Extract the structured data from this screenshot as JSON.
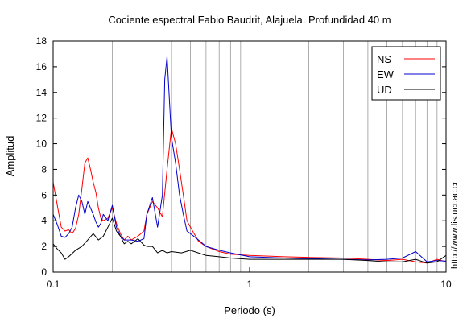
{
  "chart_data": {
    "type": "line",
    "title": "Cociente espectral Fabio Baudrit, Alajuela. Profundidad 40 m",
    "xlabel": "Periodo (s)",
    "ylabel": "Amplitud",
    "xscale": "log",
    "xlim": [
      0.1,
      10
    ],
    "ylim": [
      0,
      18
    ],
    "grid": "vertical log minor lines",
    "legend_placement": "top-right",
    "xticks": [
      {
        "value": 0.1,
        "label": "0.1"
      },
      {
        "value": 1,
        "label": "1"
      },
      {
        "value": 10,
        "label": "10"
      }
    ],
    "yticks": [
      {
        "value": 0,
        "label": "0"
      },
      {
        "value": 2,
        "label": "2"
      },
      {
        "value": 4,
        "label": "4"
      },
      {
        "value": 6,
        "label": "6"
      },
      {
        "value": 8,
        "label": "8"
      },
      {
        "value": 10,
        "label": "10"
      },
      {
        "value": 12,
        "label": "12"
      },
      {
        "value": 14,
        "label": "14"
      },
      {
        "value": 16,
        "label": "16"
      },
      {
        "value": 18,
        "label": "18"
      }
    ],
    "annotation": "http://www.lis.ucr.ac.cr",
    "series": [
      {
        "name": "NS",
        "color": "#ff0000",
        "x": [
          0.1,
          0.105,
          0.11,
          0.115,
          0.12,
          0.125,
          0.13,
          0.135,
          0.14,
          0.145,
          0.15,
          0.155,
          0.16,
          0.165,
          0.17,
          0.175,
          0.18,
          0.19,
          0.2,
          0.21,
          0.22,
          0.23,
          0.24,
          0.25,
          0.27,
          0.29,
          0.3,
          0.32,
          0.34,
          0.36,
          0.38,
          0.4,
          0.42,
          0.44,
          0.46,
          0.48,
          0.5,
          0.55,
          0.6,
          0.7,
          0.8,
          1.0,
          1.5,
          2.0,
          3.0,
          4.0,
          5.0,
          6.0,
          7.0,
          8.0,
          9.0,
          10.0
        ],
        "values": [
          7.0,
          5.2,
          3.5,
          3.2,
          3.3,
          3.0,
          3.4,
          4.5,
          6.5,
          8.5,
          8.9,
          8.0,
          7.0,
          6.2,
          5.0,
          4.2,
          4.0,
          4.2,
          5.0,
          3.8,
          3.0,
          2.5,
          2.8,
          2.5,
          2.8,
          3.2,
          4.5,
          5.5,
          5.0,
          4.3,
          8.0,
          11.2,
          10.0,
          8.0,
          6.0,
          4.0,
          3.5,
          2.4,
          2.0,
          1.6,
          1.4,
          1.3,
          1.2,
          1.15,
          1.1,
          1.0,
          0.9,
          1.0,
          0.8,
          0.7,
          1.0,
          0.8
        ]
      },
      {
        "name": "EW",
        "color": "#0000cc",
        "x": [
          0.1,
          0.105,
          0.11,
          0.115,
          0.12,
          0.125,
          0.13,
          0.135,
          0.14,
          0.145,
          0.15,
          0.155,
          0.16,
          0.165,
          0.17,
          0.175,
          0.18,
          0.19,
          0.2,
          0.21,
          0.22,
          0.23,
          0.24,
          0.25,
          0.27,
          0.29,
          0.3,
          0.32,
          0.34,
          0.36,
          0.37,
          0.38,
          0.4,
          0.42,
          0.44,
          0.46,
          0.48,
          0.5,
          0.55,
          0.6,
          0.7,
          0.8,
          1.0,
          1.5,
          2.0,
          3.0,
          4.0,
          5.0,
          6.0,
          7.0,
          8.0,
          9.0,
          10.0
        ],
        "values": [
          4.5,
          3.7,
          2.8,
          2.7,
          3.0,
          3.5,
          5.0,
          6.0,
          5.5,
          4.5,
          5.5,
          5.0,
          4.5,
          3.9,
          3.5,
          3.8,
          4.5,
          4.0,
          5.2,
          3.5,
          2.8,
          2.5,
          2.5,
          2.5,
          2.4,
          2.6,
          4.5,
          5.8,
          3.5,
          6.0,
          15.0,
          16.8,
          10.5,
          8.5,
          6.0,
          4.5,
          3.2,
          3.0,
          2.5,
          2.0,
          1.7,
          1.5,
          1.2,
          1.1,
          1.05,
          1.0,
          0.95,
          1.0,
          1.1,
          1.6,
          0.8,
          0.9,
          0.85
        ]
      },
      {
        "name": "UD",
        "color": "#000000",
        "x": [
          0.1,
          0.105,
          0.11,
          0.115,
          0.12,
          0.13,
          0.14,
          0.15,
          0.16,
          0.17,
          0.18,
          0.19,
          0.2,
          0.21,
          0.22,
          0.23,
          0.24,
          0.25,
          0.27,
          0.29,
          0.3,
          0.32,
          0.34,
          0.36,
          0.38,
          0.4,
          0.45,
          0.5,
          0.6,
          0.7,
          0.8,
          1.0,
          1.5,
          2.0,
          3.0,
          4.0,
          5.0,
          6.0,
          7.0,
          8.0,
          9.0,
          10.0
        ],
        "values": [
          2.2,
          1.8,
          1.5,
          1.0,
          1.2,
          1.7,
          2.0,
          2.5,
          3.0,
          2.5,
          2.8,
          3.5,
          4.2,
          3.2,
          2.8,
          2.2,
          2.4,
          2.2,
          2.6,
          2.1,
          2.0,
          2.0,
          1.5,
          1.7,
          1.5,
          1.6,
          1.5,
          1.7,
          1.3,
          1.2,
          1.1,
          1.0,
          1.0,
          1.0,
          1.0,
          0.9,
          0.8,
          0.8,
          1.0,
          0.7,
          0.8,
          1.3
        ]
      }
    ]
  }
}
